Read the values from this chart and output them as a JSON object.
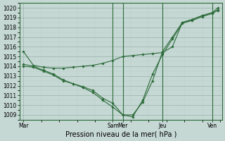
{
  "title": "",
  "xlabel": "Pression niveau de la mer( hPa )",
  "background_color": "#c5d8d4",
  "grid_color_minor": "#b8ccc8",
  "grid_color_major": "#9ab0ab",
  "line_color": "#2d6b3a",
  "ylim": [
    1008.5,
    1020.5
  ],
  "yticks": [
    1009,
    1010,
    1011,
    1012,
    1013,
    1014,
    1015,
    1016,
    1017,
    1018,
    1019,
    1020
  ],
  "xtick_labels": [
    "Mar",
    "Sam",
    "Mer",
    "Jeu",
    "Ven"
  ],
  "xtick_positions": [
    0,
    4.5,
    5.0,
    7.0,
    9.5
  ],
  "xlim": [
    -0.2,
    10.0
  ],
  "vlines": [
    4.5,
    5.0,
    7.0,
    9.5
  ],
  "series": [
    {
      "x": [
        0.0,
        0.5,
        1.0,
        1.5,
        2.0,
        2.5,
        3.0,
        3.5,
        4.0,
        4.5,
        5.0,
        5.5,
        6.0,
        6.5,
        7.0,
        7.5,
        8.0,
        8.5,
        9.0,
        9.5,
        9.8
      ],
      "y": [
        1015.5,
        1014.1,
        1013.9,
        1013.8,
        1013.8,
        1013.9,
        1014.0,
        1014.1,
        1014.3,
        1014.6,
        1015.0,
        1015.1,
        1015.2,
        1015.3,
        1015.4,
        1016.0,
        1018.5,
        1018.8,
        1019.2,
        1019.5,
        1019.7
      ]
    },
    {
      "x": [
        0.0,
        0.5,
        1.0,
        1.5,
        2.0,
        2.5,
        3.0,
        3.5,
        4.0,
        4.5,
        5.0,
        5.5,
        6.0,
        6.5,
        7.0,
        7.5,
        8.0,
        8.5,
        9.0,
        9.5,
        9.8
      ],
      "y": [
        1014.2,
        1014.0,
        1013.6,
        1013.2,
        1012.6,
        1012.2,
        1011.9,
        1011.5,
        1010.7,
        1010.2,
        1009.0,
        1009.0,
        1010.3,
        1012.5,
        1015.5,
        1017.0,
        1018.5,
        1018.8,
        1019.2,
        1019.5,
        1020.0
      ]
    },
    {
      "x": [
        0.0,
        0.5,
        1.0,
        1.5,
        2.0,
        2.5,
        3.0,
        3.5,
        4.0,
        4.5,
        5.0,
        5.5,
        6.0,
        6.5,
        7.0,
        7.5,
        8.0,
        8.5,
        9.0,
        9.5,
        9.8
      ],
      "y": [
        1014.0,
        1013.9,
        1013.5,
        1013.1,
        1012.5,
        1012.2,
        1011.8,
        1011.3,
        1010.5,
        1009.8,
        1009.0,
        1008.8,
        1010.5,
        1013.2,
        1015.2,
        1016.8,
        1018.4,
        1018.7,
        1019.1,
        1019.4,
        1019.8
      ]
    }
  ]
}
